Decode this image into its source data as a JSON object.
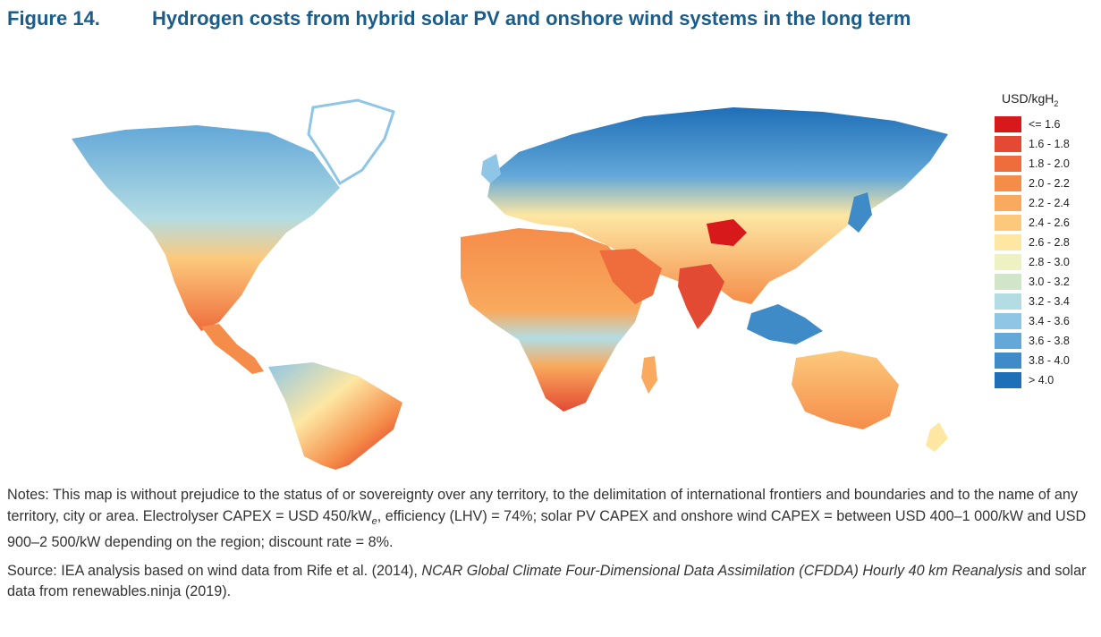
{
  "figure": {
    "number": "Figure 14.",
    "title": "Hydrogen costs from hybrid solar PV and onshore wind systems in the long term"
  },
  "legend": {
    "unit": "USD/kgH",
    "unit_subscript": "2",
    "items": [
      {
        "label": "<= 1.6",
        "color": "#d7191c"
      },
      {
        "label": "1.6 - 1.8",
        "color": "#e34a33"
      },
      {
        "label": "1.8 - 2.0",
        "color": "#ef6d3c"
      },
      {
        "label": "2.0 - 2.2",
        "color": "#f58d4a"
      },
      {
        "label": "2.2 - 2.4",
        "color": "#f9aa5e"
      },
      {
        "label": "2.4 - 2.6",
        "color": "#fcc97c"
      },
      {
        "label": "2.6 - 2.8",
        "color": "#fde7a3"
      },
      {
        "label": "2.8 - 3.0",
        "color": "#eef2c2"
      },
      {
        "label": "3.0 - 3.2",
        "color": "#d1e6c9"
      },
      {
        "label": "3.2 - 3.4",
        "color": "#b3dce3"
      },
      {
        "label": "3.4 - 3.6",
        "color": "#8fc6e6"
      },
      {
        "label": "3.6 - 3.8",
        "color": "#63a8d8"
      },
      {
        "label": "3.8 - 4.0",
        "color": "#3f8bc8"
      },
      {
        "label": "> 4.0",
        "color": "#1f6fb8"
      }
    ]
  },
  "notes": {
    "part1": "Notes: This map is without prejudice to the status of or sovereignty over any territory, to the delimitation of international frontiers and boundaries and to the name of any territory, city or area. Electrolyser CAPEX = USD 450/kW",
    "part1_sub": "e",
    "part2": ", efficiency (LHV) = 74%; solar PV CAPEX and onshore wind CAPEX = between USD 400–1 000/kW and USD 900–2 500/kW depending on the region; discount rate = 8%."
  },
  "source": {
    "prefix": "Source: IEA analysis based on wind data from Rife et al. (2014), ",
    "italic": "NCAR Global Climate Four-Dimensional Data Assimilation (CFDDA) Hourly 40 km Reanalysis",
    "suffix": " and solar data from renewables.ninja (2019)."
  }
}
